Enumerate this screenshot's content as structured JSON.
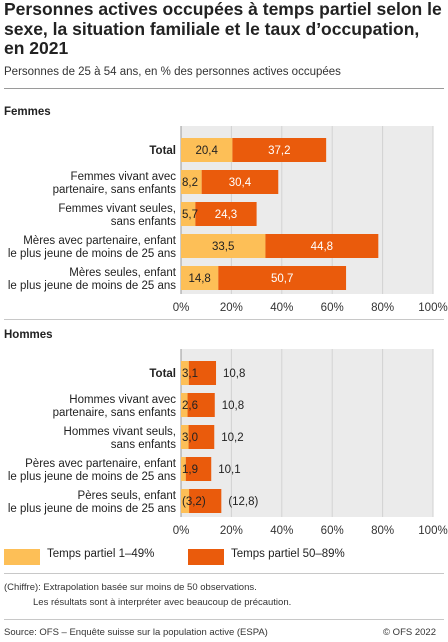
{
  "title": "Personnes actives occupées à temps partiel selon le sexe, la situation familiale et le taux d’occupation, en 2021",
  "subtitle": "Personnes de 25 à 54 ans, en % des personnes actives occupées",
  "colors": {
    "series1": "#fdbf57",
    "series2": "#ea5b0c",
    "grid": "#d2d2d2",
    "background": "#ebebeb"
  },
  "legend": [
    "Temps partiel 1–49%",
    "Temps partiel 50–89%"
  ],
  "notes": [
    "(Chiffre): Extrapolation basée sur moins de 50 observations.",
    "Les résultats sont à interpréter avec beaucoup de précaution."
  ],
  "source": "Source: OFS – Enquête suisse sur la population active (ESPA)",
  "copyright": "© OFS 2022",
  "chart_data": [
    {
      "type": "bar",
      "orientation": "horizontal",
      "stacked": true,
      "title": "Femmes",
      "categories": [
        [
          "Total"
        ],
        [
          "Femmes vivant avec",
          "partenaire, sans enfants"
        ],
        [
          "Femmes vivant seules,",
          "sans enfants"
        ],
        [
          "Mères avec partenaire, enfant",
          "le plus jeune de moins de 25 ans"
        ],
        [
          "Mères seules, enfant",
          "le plus jeune de moins de 25 ans"
        ]
      ],
      "series": [
        {
          "name": "Temps partiel 1–49%",
          "values": [
            20.4,
            8.2,
            5.7,
            33.5,
            14.8
          ],
          "labels": [
            "20,4",
            "8,2",
            "5,7",
            "33,5",
            "14,8"
          ]
        },
        {
          "name": "Temps partiel 50–89%",
          "values": [
            37.2,
            30.4,
            24.3,
            44.8,
            50.7
          ],
          "labels": [
            "37,2",
            "30,4",
            "24,3",
            "44,8",
            "50,7"
          ]
        }
      ],
      "xlim": [
        0,
        100
      ],
      "ticks": [
        "0%",
        "20%",
        "40%",
        "60%",
        "80%",
        "100%"
      ],
      "grid": true
    },
    {
      "type": "bar",
      "orientation": "horizontal",
      "stacked": true,
      "title": "Hommes",
      "categories": [
        [
          "Total"
        ],
        [
          "Hommes vivant avec",
          "partenaire, sans enfants"
        ],
        [
          "Hommes vivant seuls,",
          "sans enfants"
        ],
        [
          "Pères avec partenaire, enfant",
          "le plus jeune de moins de 25 ans"
        ],
        [
          "Pères seuls, enfant",
          "le plus jeune de moins de 25 ans"
        ]
      ],
      "series": [
        {
          "name": "Temps partiel 1–49%",
          "values": [
            3.1,
            2.6,
            3.0,
            1.9,
            3.2
          ],
          "labels": [
            "3,1",
            "2,6",
            "3,0",
            "1,9",
            "(3,2)"
          ]
        },
        {
          "name": "Temps partiel 50–89%",
          "values": [
            10.8,
            10.8,
            10.2,
            10.1,
            12.8
          ],
          "labels": [
            "10,8",
            "10,8",
            "10,2",
            "10,1",
            "(12,8)"
          ]
        }
      ],
      "xlim": [
        0,
        100
      ],
      "ticks": [
        "0%",
        "20%",
        "40%",
        "60%",
        "80%",
        "100%"
      ],
      "grid": true
    }
  ]
}
